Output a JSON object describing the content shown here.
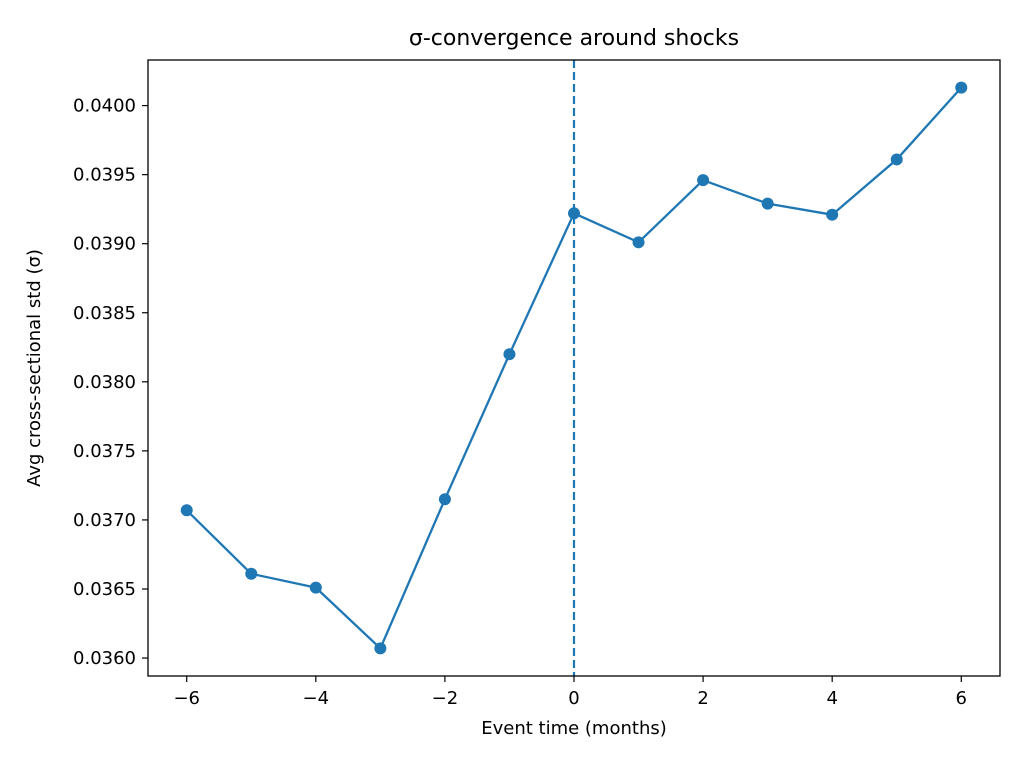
{
  "chart_data": {
    "type": "line",
    "title": "σ-convergence around shocks",
    "xlabel": "Event time (months)",
    "ylabel": "Avg cross-sectional std (σ)",
    "x": [
      -6,
      -5,
      -4,
      -3,
      -2,
      -1,
      0,
      1,
      2,
      3,
      4,
      5,
      6
    ],
    "series": [
      {
        "values": [
          0.03707,
          0.03661,
          0.03651,
          0.03607,
          0.03715,
          0.0382,
          0.03922,
          0.03901,
          0.03946,
          0.03929,
          0.03921,
          0.03961,
          0.04013
        ],
        "color": "#1f77b4",
        "marker": "circle"
      }
    ],
    "xlim": [
      -6.6,
      6.6
    ],
    "ylim": [
      0.03587,
      0.04033
    ],
    "xticks": [
      -6,
      -4,
      -2,
      0,
      2,
      4,
      6
    ],
    "xtick_labels": [
      "−6",
      "−4",
      "−2",
      "0",
      "2",
      "4",
      "6"
    ],
    "yticks": [
      0.036,
      0.0365,
      0.037,
      0.0375,
      0.038,
      0.0385,
      0.039,
      0.0395,
      0.04
    ],
    "ytick_labels": [
      "0.0360",
      "0.0365",
      "0.0370",
      "0.0375",
      "0.0380",
      "0.0385",
      "0.0390",
      "0.0395",
      "0.0400"
    ],
    "vline": {
      "x": 0,
      "style": "dashed",
      "color": "#1f77b4"
    },
    "grid": false,
    "legend": "none"
  }
}
